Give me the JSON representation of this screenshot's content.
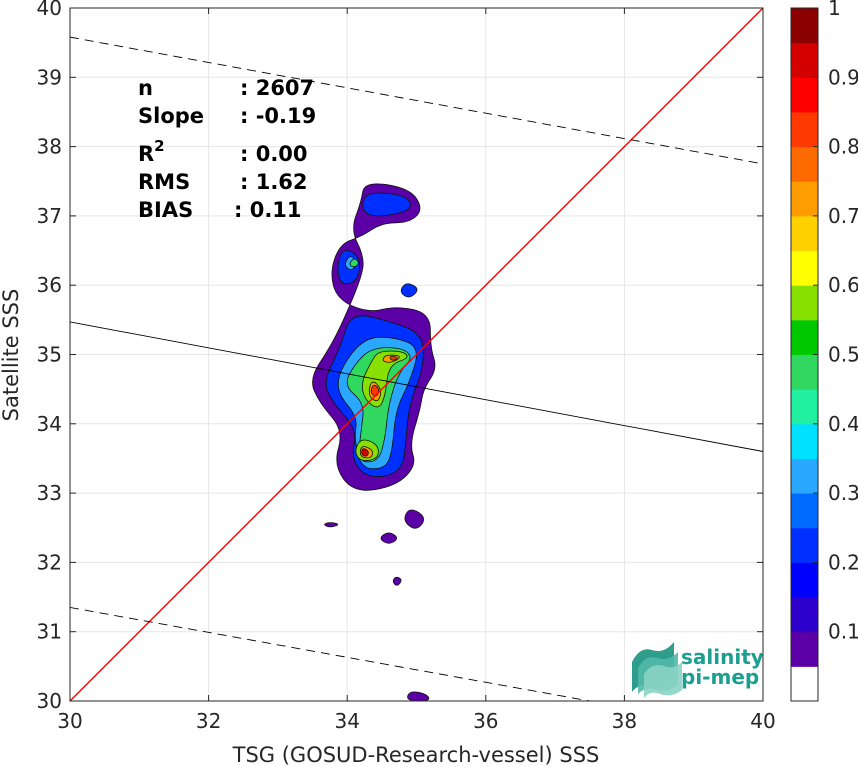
{
  "chart_data": {
    "type": "heatmap",
    "title": "",
    "xlabel": "TSG (GOSUD-Research-vessel) SSS",
    "ylabel": "Satellite SSS",
    "xlim": [
      30,
      40
    ],
    "ylim": [
      30,
      40
    ],
    "x_ticks": [
      30,
      32,
      34,
      36,
      38,
      40
    ],
    "y_ticks": [
      30,
      31,
      32,
      33,
      34,
      35,
      36,
      37,
      38,
      39,
      40
    ],
    "grid": true,
    "colorbar": {
      "range": [
        0,
        1
      ],
      "ticks": [
        0.1,
        0.2,
        0.3,
        0.4,
        0.5,
        0.6,
        0.7,
        0.8,
        0.9,
        1
      ],
      "tick_labels": [
        "0.1",
        "0.2",
        "0.3",
        "0.4",
        "0.5",
        "0.6",
        "0.7",
        "0.8",
        "0.9",
        "1"
      ],
      "colors": [
        "#ffffff",
        "#5a00a6",
        "#2d00cc",
        "#0000ff",
        "#0030ff",
        "#006cff",
        "#2aa8ff",
        "#00e0ff",
        "#20f0a0",
        "#30d860",
        "#00c800",
        "#88e000",
        "#ffff00",
        "#ffd000",
        "#ff9c00",
        "#ff6a00",
        "#ff3a00",
        "#ff0000",
        "#d40000",
        "#8b0000"
      ]
    },
    "lines": [
      {
        "name": "one-to-one",
        "color": "#ff0000",
        "style": "solid",
        "x": [
          30,
          40
        ],
        "y": [
          30,
          40
        ]
      },
      {
        "name": "regression",
        "color": "#000000",
        "style": "solid",
        "x": [
          30,
          40
        ],
        "y": [
          35.47,
          33.6
        ]
      },
      {
        "name": "upper-bound",
        "color": "#000000",
        "style": "dashed",
        "x": [
          30,
          40
        ],
        "y": [
          39.58,
          37.75
        ]
      },
      {
        "name": "lower-bound",
        "color": "#000000",
        "style": "dashed",
        "x": [
          30,
          37.5
        ],
        "y": [
          31.35,
          30.0
        ]
      }
    ],
    "density_contours": [
      {
        "level": 0.07,
        "points": [
          [
            34.25,
            37.5
          ],
          [
            34.9,
            37.4
          ],
          [
            35.1,
            37.1
          ],
          [
            34.9,
            36.9
          ],
          [
            34.5,
            36.9
          ],
          [
            34.2,
            36.7
          ],
          [
            33.9,
            36.6
          ],
          [
            33.75,
            36.2
          ],
          [
            33.85,
            35.8
          ],
          [
            34.3,
            35.6
          ],
          [
            34.7,
            35.7
          ],
          [
            35.2,
            35.6
          ],
          [
            35.2,
            35.1
          ],
          [
            35.3,
            34.8
          ],
          [
            35.1,
            34.5
          ],
          [
            35.05,
            34.2
          ],
          [
            34.9,
            33.7
          ],
          [
            35.0,
            33.4
          ],
          [
            34.7,
            33.1
          ],
          [
            34.1,
            33.0
          ],
          [
            33.8,
            33.4
          ],
          [
            33.95,
            33.9
          ],
          [
            33.6,
            34.3
          ],
          [
            33.45,
            34.65
          ],
          [
            33.75,
            35.1
          ],
          [
            33.95,
            35.5
          ],
          [
            34.2,
            36.1
          ],
          [
            34.25,
            36.4
          ],
          [
            34.05,
            36.8
          ],
          [
            34.2,
            37.2
          ]
        ]
      },
      {
        "level": 0.07,
        "points": [
          [
            34.9,
            32.8
          ],
          [
            35.15,
            32.65
          ],
          [
            35.0,
            32.45
          ],
          [
            34.8,
            32.6
          ]
        ]
      },
      {
        "level": 0.07,
        "points": [
          [
            34.6,
            32.45
          ],
          [
            34.75,
            32.35
          ],
          [
            34.6,
            32.25
          ],
          [
            34.45,
            32.35
          ]
        ]
      },
      {
        "level": 0.07,
        "points": [
          [
            34.7,
            31.8
          ],
          [
            34.8,
            31.75
          ],
          [
            34.72,
            31.65
          ],
          [
            34.65,
            31.72
          ]
        ]
      },
      {
        "level": 0.07,
        "points": [
          [
            33.75,
            32.58
          ],
          [
            33.9,
            32.55
          ],
          [
            33.75,
            32.5
          ],
          [
            33.65,
            32.55
          ]
        ]
      },
      {
        "level": 0.07,
        "points": [
          [
            34.9,
            30.15
          ],
          [
            35.15,
            30.1
          ],
          [
            35.2,
            30.0
          ],
          [
            34.85,
            30.0
          ]
        ]
      },
      {
        "level": 0.2,
        "points": [
          [
            34.3,
            37.35
          ],
          [
            34.85,
            37.3
          ],
          [
            34.95,
            37.1
          ],
          [
            34.6,
            37.0
          ],
          [
            34.3,
            37.0
          ],
          [
            34.2,
            37.15
          ]
        ]
      },
      {
        "level": 0.2,
        "points": [
          [
            34.05,
            35.6
          ],
          [
            34.55,
            35.5
          ],
          [
            35.1,
            35.3
          ],
          [
            35.1,
            34.8
          ],
          [
            34.9,
            34.3
          ],
          [
            34.85,
            33.8
          ],
          [
            34.8,
            33.3
          ],
          [
            34.3,
            33.2
          ],
          [
            34.05,
            33.5
          ],
          [
            34.15,
            33.9
          ],
          [
            33.8,
            34.3
          ],
          [
            33.65,
            34.6
          ],
          [
            33.9,
            35.1
          ]
        ]
      },
      {
        "level": 0.2,
        "points": [
          [
            33.95,
            36.55
          ],
          [
            34.2,
            36.4
          ],
          [
            34.15,
            36.05
          ],
          [
            33.9,
            36.0
          ],
          [
            33.85,
            36.3
          ]
        ]
      },
      {
        "level": 0.2,
        "points": [
          [
            34.85,
            36.05
          ],
          [
            35.05,
            35.95
          ],
          [
            34.9,
            35.8
          ],
          [
            34.75,
            35.9
          ]
        ]
      },
      {
        "level": 0.3,
        "points": [
          [
            34.25,
            35.25
          ],
          [
            34.7,
            35.25
          ],
          [
            35.05,
            35.1
          ],
          [
            34.9,
            34.6
          ],
          [
            34.7,
            34.2
          ],
          [
            34.65,
            33.6
          ],
          [
            34.55,
            33.35
          ],
          [
            34.2,
            33.35
          ],
          [
            34.1,
            33.8
          ],
          [
            34.15,
            34.1
          ],
          [
            33.85,
            34.45
          ],
          [
            33.9,
            34.8
          ]
        ]
      },
      {
        "level": 0.3,
        "points": [
          [
            34.05,
            36.45
          ],
          [
            34.15,
            36.3
          ],
          [
            34.05,
            36.2
          ],
          [
            33.95,
            36.3
          ]
        ]
      },
      {
        "level": 0.45,
        "points": [
          [
            34.35,
            35.1
          ],
          [
            34.8,
            35.1
          ],
          [
            34.95,
            34.95
          ],
          [
            34.75,
            34.75
          ],
          [
            34.6,
            34.3
          ],
          [
            34.55,
            33.8
          ],
          [
            34.45,
            33.45
          ],
          [
            34.15,
            33.45
          ],
          [
            34.2,
            33.9
          ],
          [
            34.25,
            34.3
          ],
          [
            33.95,
            34.55
          ],
          [
            34.1,
            34.85
          ]
        ]
      },
      {
        "level": 0.45,
        "points": [
          [
            34.1,
            36.4
          ],
          [
            34.18,
            36.32
          ],
          [
            34.1,
            36.25
          ],
          [
            34.02,
            36.3
          ]
        ]
      },
      {
        "level": 0.6,
        "points": [
          [
            34.45,
            35.05
          ],
          [
            34.8,
            35.05
          ],
          [
            34.9,
            34.95
          ],
          [
            34.6,
            34.85
          ],
          [
            34.55,
            34.4
          ],
          [
            34.45,
            34.2
          ],
          [
            34.25,
            34.35
          ],
          [
            34.2,
            34.6
          ],
          [
            34.35,
            34.9
          ]
        ]
      },
      {
        "level": 0.6,
        "points": [
          [
            34.2,
            33.8
          ],
          [
            34.45,
            33.7
          ],
          [
            34.45,
            33.5
          ],
          [
            34.2,
            33.45
          ],
          [
            34.1,
            33.6
          ]
        ]
      },
      {
        "level": 0.75,
        "points": [
          [
            34.55,
            35.0
          ],
          [
            34.8,
            34.98
          ],
          [
            34.65,
            34.88
          ],
          [
            34.5,
            34.9
          ]
        ]
      },
      {
        "level": 0.75,
        "points": [
          [
            34.35,
            34.65
          ],
          [
            34.5,
            34.5
          ],
          [
            34.45,
            34.3
          ],
          [
            34.3,
            34.4
          ]
        ]
      },
      {
        "level": 0.75,
        "points": [
          [
            34.2,
            33.7
          ],
          [
            34.38,
            33.62
          ],
          [
            34.35,
            33.5
          ],
          [
            34.18,
            33.52
          ]
        ]
      },
      {
        "level": 0.85,
        "points": [
          [
            34.6,
            34.98
          ],
          [
            34.75,
            34.96
          ],
          [
            34.65,
            34.9
          ]
        ]
      },
      {
        "level": 0.85,
        "points": [
          [
            34.38,
            34.58
          ],
          [
            34.47,
            34.5
          ],
          [
            34.42,
            34.38
          ],
          [
            34.33,
            34.45
          ]
        ]
      },
      {
        "level": 0.95,
        "points": [
          [
            34.22,
            33.66
          ],
          [
            34.32,
            33.6
          ],
          [
            34.28,
            33.52
          ],
          [
            34.2,
            33.56
          ]
        ]
      }
    ]
  },
  "stats": [
    {
      "label": "n",
      "value": ": 2607"
    },
    {
      "label": "Slope",
      "value": ": -0.19"
    },
    {
      "label": "R",
      "sup": "2",
      "value": ": 0.00"
    },
    {
      "label": "RMS",
      "value": ": 1.62"
    },
    {
      "label": "BIAS",
      "value": ": 0.11"
    }
  ],
  "logo": {
    "line1": "salinity",
    "line2": "pi-mep"
  }
}
